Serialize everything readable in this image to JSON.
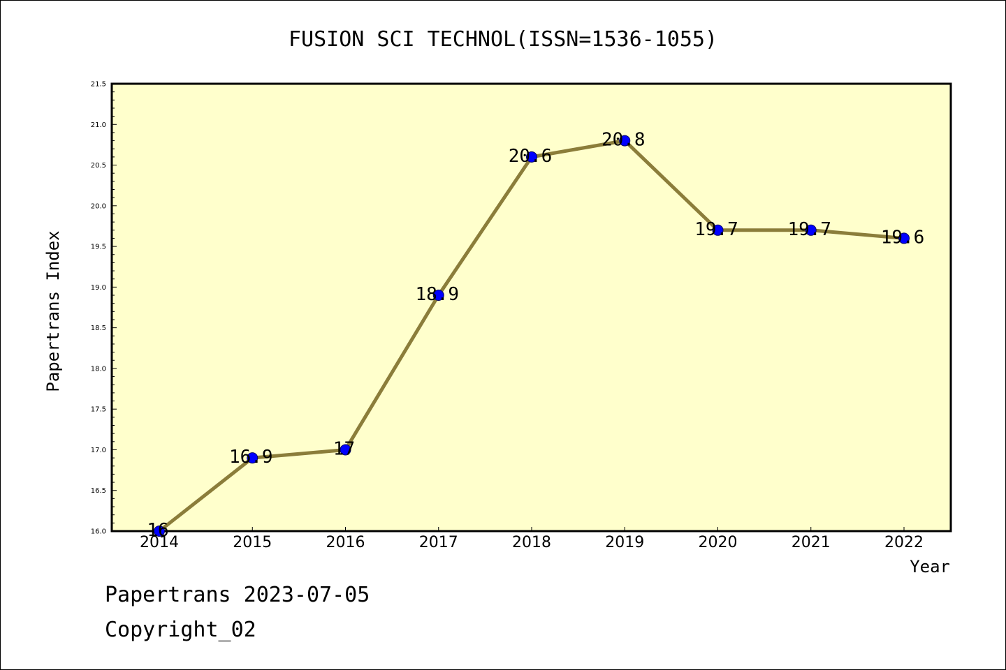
{
  "chart_data": {
    "type": "line",
    "title": "FUSION SCI TECHNOL(ISSN=1536-1055)",
    "xlabel": "Year",
    "ylabel": "Papertrans Index",
    "x": [
      "2014",
      "2015",
      "2016",
      "2017",
      "2018",
      "2019",
      "2020",
      "2021",
      "2022"
    ],
    "series": [
      {
        "values": [
          16,
          16.9,
          17,
          18.9,
          20.6,
          20.8,
          19.7,
          19.7,
          19.6
        ],
        "data_labels": [
          "16",
          "16.9",
          "17",
          "18.9",
          "20.6",
          "20.8",
          "19.7",
          "19.7",
          "19.6"
        ]
      }
    ],
    "ylim": [
      16.0,
      21.5
    ],
    "yticks": [
      "16.0",
      "16.5",
      "17.0",
      "17.5",
      "18.0",
      "18.5",
      "19.0",
      "19.5",
      "20.0",
      "20.5",
      "21.0",
      "21.5"
    ],
    "grid": false,
    "colors": {
      "plot_background": "#ffffcc",
      "line": "#8b7d3a",
      "marker": "#0000ff"
    }
  },
  "footer": {
    "line1": "Papertrans 2023-07-05",
    "line2": "Copyright_02"
  }
}
